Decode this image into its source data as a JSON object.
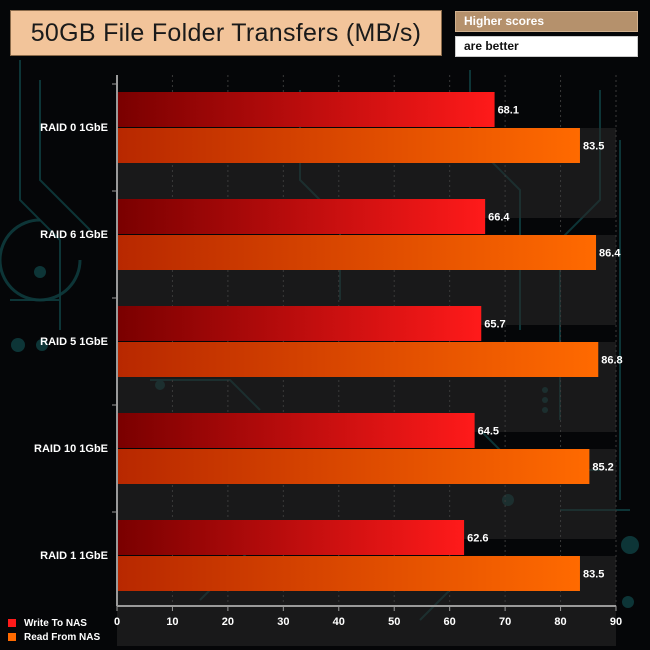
{
  "header": {
    "title": "50GB File Folder Transfers (MB/s)",
    "note_line1": "Higher scores",
    "note_line2": "are better"
  },
  "colors": {
    "write_start": "#7a0000",
    "write_end": "#ff1a1a",
    "read_start": "#b82800",
    "read_end": "#ff6a00",
    "axis": "#9a9a9a",
    "band": "#2a2a2a"
  },
  "chart_data": {
    "type": "bar",
    "orientation": "horizontal",
    "categories": [
      "RAID 0 1GbE",
      "RAID 6 1GbE",
      "RAID 5 1GbE",
      "RAID 10 1GbE",
      "RAID 1 1GbE"
    ],
    "series": [
      {
        "name": "Write To NAS",
        "values": [
          68.1,
          66.4,
          65.7,
          64.5,
          62.6
        ]
      },
      {
        "name": "Read From NAS",
        "values": [
          83.5,
          86.4,
          86.8,
          85.2,
          83.5
        ]
      }
    ],
    "xlim": [
      0,
      90
    ],
    "xticks": [
      0,
      10,
      20,
      30,
      40,
      50,
      60,
      70,
      80,
      90
    ],
    "legend_position": "bottom-left",
    "title": "50GB File Folder Transfers (MB/s)"
  }
}
